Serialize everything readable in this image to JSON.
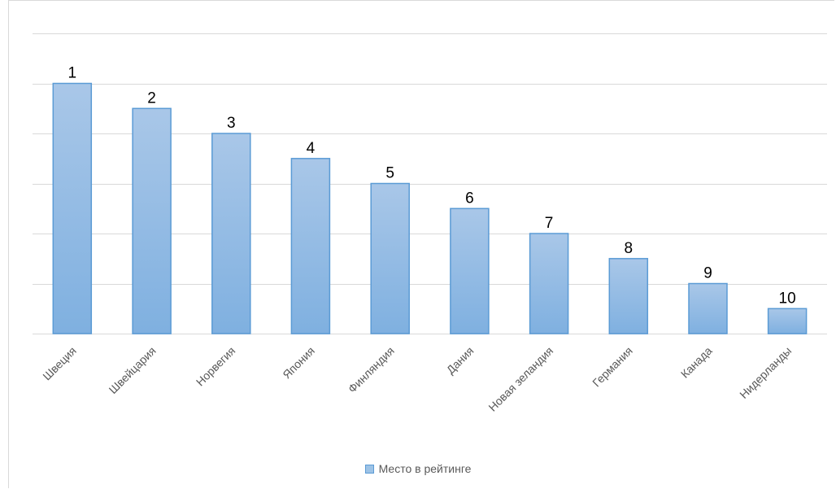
{
  "chart_data": {
    "type": "bar",
    "categories": [
      "Швеция",
      "Швейцария",
      "Норвегия",
      "Япония",
      "Финляндия",
      "Дания",
      "Новая зеландия",
      "Германия",
      "Канада",
      "Нидерланды"
    ],
    "series": [
      {
        "name": "Место в рейтинге",
        "values": [
          10,
          9,
          8,
          7,
          6,
          5,
          4,
          3,
          2,
          1
        ],
        "data_labels": [
          "1",
          "2",
          "3",
          "4",
          "5",
          "6",
          "7",
          "8",
          "9",
          "10"
        ]
      }
    ],
    "ylim": [
      0,
      12
    ],
    "y_gridlines": [
      0,
      2,
      4,
      6,
      8,
      10,
      12
    ],
    "y_tick_labels_shown": false,
    "grid": true,
    "x_tick_rotation_deg": -45,
    "legend_position": "bottom",
    "colors": {
      "bar_fill_top": "#a9c7e8",
      "bar_fill_bottom": "#7fb0e0",
      "bar_stroke": "#5b9bd5",
      "grid": "#d9d9d9",
      "axis": "#d9d9d9"
    }
  }
}
